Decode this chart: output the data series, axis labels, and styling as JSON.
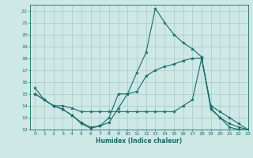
{
  "xlabel": "Humidex (Indice chaleur)",
  "xlim": [
    -0.5,
    23
  ],
  "ylim": [
    12,
    22.5
  ],
  "yticks": [
    12,
    13,
    14,
    15,
    16,
    17,
    18,
    19,
    20,
    21,
    22
  ],
  "xticks": [
    0,
    1,
    2,
    3,
    4,
    5,
    6,
    7,
    8,
    9,
    10,
    11,
    12,
    13,
    14,
    15,
    16,
    17,
    18,
    19,
    20,
    21,
    22,
    23
  ],
  "bg_color": "#cde8e5",
  "grid_color": "#a8cbc8",
  "line_color": "#1a6b6b",
  "line1_x": [
    0,
    1,
    2,
    3,
    4,
    5,
    6,
    7,
    8,
    9,
    10,
    11,
    12,
    13,
    14,
    15,
    16,
    17,
    18,
    19,
    20,
    21,
    22,
    23
  ],
  "line1_y": [
    15.5,
    14.5,
    14.0,
    13.7,
    13.2,
    12.5,
    12.1,
    12.3,
    13.0,
    15.0,
    15.0,
    16.8,
    18.5,
    22.2,
    21.0,
    20.0,
    19.3,
    18.8,
    18.1,
    13.7,
    13.0,
    12.2,
    12.0,
    12.0
  ],
  "line2_x": [
    0,
    1,
    2,
    3,
    4,
    5,
    6,
    7,
    8,
    9,
    10,
    11,
    12,
    13,
    14,
    15,
    16,
    17,
    18,
    19,
    20,
    21,
    22,
    23
  ],
  "line2_y": [
    15.0,
    14.5,
    14.0,
    14.0,
    13.8,
    13.5,
    13.5,
    13.5,
    13.5,
    13.5,
    13.5,
    13.5,
    13.5,
    13.5,
    13.5,
    13.5,
    14.0,
    14.5,
    18.0,
    14.0,
    13.5,
    13.0,
    12.5,
    12.0
  ],
  "line3_x": [
    0,
    1,
    2,
    3,
    4,
    5,
    6,
    7,
    8,
    9,
    10,
    11,
    12,
    13,
    14,
    15,
    16,
    17,
    18,
    19,
    20,
    21,
    22,
    23
  ],
  "line3_y": [
    15.0,
    14.5,
    14.0,
    13.7,
    13.2,
    12.6,
    12.2,
    12.3,
    12.6,
    13.8,
    15.0,
    15.2,
    16.5,
    17.0,
    17.3,
    17.5,
    17.8,
    18.0,
    18.0,
    13.8,
    13.0,
    12.5,
    12.2,
    12.0
  ]
}
